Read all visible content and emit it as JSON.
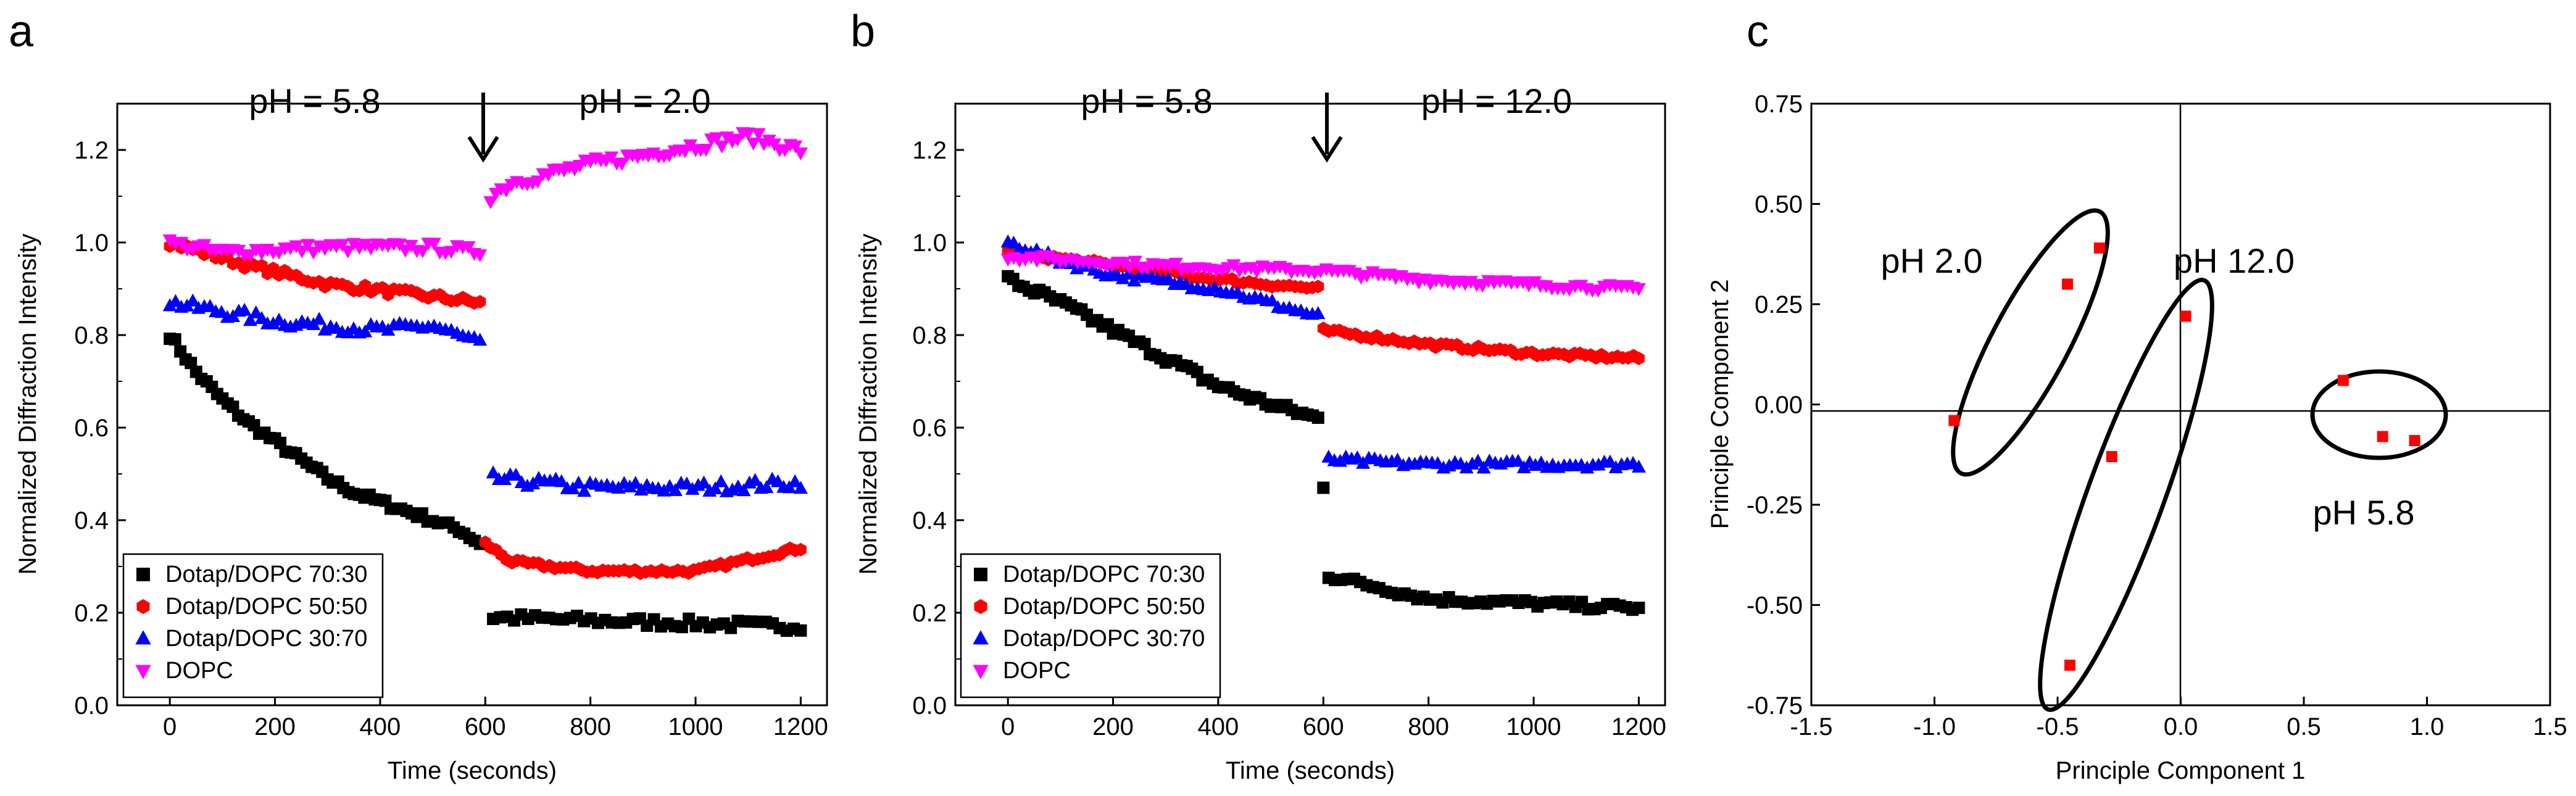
{
  "chart_data": [
    {
      "type": "scatter",
      "panel": "a",
      "title": "",
      "xlabel": "Time (seconds)",
      "ylabel": "Normalized Diffraction Intensity",
      "xlim": [
        -100,
        1250
      ],
      "ylim": [
        0.0,
        1.3
      ],
      "xticks": [
        0,
        200,
        400,
        600,
        800,
        1000,
        1200
      ],
      "yticks": [
        0.0,
        0.2,
        0.4,
        0.6,
        0.8,
        1.0,
        1.2
      ],
      "annotations": [
        {
          "text": "pH = 5.8",
          "x": 270,
          "y": 1.31
        },
        {
          "text": "pH = 2.0",
          "x": 920,
          "y": 1.31
        }
      ],
      "arrow_x": 600,
      "legend_position": "bottom-left",
      "series": [
        {
          "name": "Dotap/DOPC 70:30",
          "marker": "square",
          "color": "#000000",
          "segments": [
            {
              "x0": 0,
              "x1": 590,
              "n": 60,
              "points": [
                [
                  0,
                  0.8
                ],
                [
                  50,
                  0.72
                ],
                [
                  100,
                  0.66
                ],
                [
                  150,
                  0.61
                ],
                [
                  200,
                  0.57
                ],
                [
                  250,
                  0.53
                ],
                [
                  300,
                  0.49
                ],
                [
                  350,
                  0.46
                ],
                [
                  400,
                  0.44
                ],
                [
                  450,
                  0.42
                ],
                [
                  500,
                  0.4
                ],
                [
                  550,
                  0.38
                ],
                [
                  590,
                  0.35
                ]
              ],
              "noise": 0.008
            },
            {
              "x0": 615,
              "x1": 1200,
              "n": 45,
              "points": [
                [
                  615,
                  0.19
                ],
                [
                  900,
                  0.18
                ],
                [
                  1200,
                  0.17
                ]
              ],
              "noise": 0.01
            }
          ]
        },
        {
          "name": "Dotap/DOPC 50:50",
          "marker": "hexagon",
          "color": "#ff0000",
          "segments": [
            {
              "x0": 0,
              "x1": 590,
              "n": 55,
              "points": [
                [
                  0,
                  1.0
                ],
                [
                  150,
                  0.95
                ],
                [
                  300,
                  0.91
                ],
                [
                  450,
                  0.89
                ],
                [
                  590,
                  0.87
                ]
              ],
              "noise": 0.008
            },
            {
              "x0": 600,
              "x1": 1200,
              "n": 60,
              "points": [
                [
                  600,
                  0.35
                ],
                [
                  650,
                  0.31
                ],
                [
                  800,
                  0.29
                ],
                [
                  1000,
                  0.29
                ],
                [
                  1200,
                  0.34
                ]
              ],
              "noise": 0.005
            }
          ]
        },
        {
          "name": "Dotap/DOPC 30:70",
          "marker": "triangle",
          "color": "#0000ff",
          "segments": [
            {
              "x0": 0,
              "x1": 590,
              "n": 55,
              "points": [
                [
                  0,
                  0.87
                ],
                [
                  200,
                  0.83
                ],
                [
                  400,
                  0.81
                ],
                [
                  500,
                  0.82
                ],
                [
                  590,
                  0.78
                ]
              ],
              "noise": 0.012
            },
            {
              "x0": 615,
              "x1": 1200,
              "n": 55,
              "points": [
                [
                  615,
                  0.49
                ],
                [
                  800,
                  0.47
                ],
                [
                  1000,
                  0.47
                ],
                [
                  1200,
                  0.48
                ]
              ],
              "noise": 0.012
            }
          ]
        },
        {
          "name": "DOPC",
          "marker": "triangle-down",
          "color": "#ff00ff",
          "segments": [
            {
              "x0": 0,
              "x1": 590,
              "n": 55,
              "points": [
                [
                  0,
                  1.0
                ],
                [
                  100,
                  0.98
                ],
                [
                  300,
                  0.99
                ],
                [
                  500,
                  0.99
                ],
                [
                  590,
                  0.98
                ]
              ],
              "noise": 0.01
            },
            {
              "x0": 610,
              "x1": 1200,
              "n": 60,
              "points": [
                [
                  610,
                  1.1
                ],
                [
                  650,
                  1.13
                ],
                [
                  800,
                  1.17
                ],
                [
                  1000,
                  1.21
                ],
                [
                  1100,
                  1.23
                ],
                [
                  1200,
                  1.2
                ]
              ],
              "noise": 0.012
            }
          ]
        }
      ]
    },
    {
      "type": "scatter",
      "panel": "b",
      "title": "",
      "xlabel": "Time (seconds)",
      "ylabel": "Normalized Diffraction Intensity",
      "xlim": [
        -100,
        1250
      ],
      "ylim": [
        0.0,
        1.3
      ],
      "xticks": [
        0,
        200,
        400,
        600,
        800,
        1000,
        1200
      ],
      "yticks": [
        0.0,
        0.2,
        0.4,
        0.6,
        0.8,
        1.0,
        1.2
      ],
      "annotations": [
        {
          "text": "pH = 5.8",
          "x": 270,
          "y": 1.31
        },
        {
          "text": "pH = 12.0",
          "x": 940,
          "y": 1.31
        }
      ],
      "arrow_x": 600,
      "legend_position": "bottom-left",
      "series": [
        {
          "name": "Dotap/DOPC 70:30",
          "marker": "square",
          "color": "#000000",
          "segments": [
            {
              "x0": 0,
              "x1": 590,
              "n": 60,
              "points": [
                [
                  0,
                  0.92
                ],
                [
                  100,
                  0.87
                ],
                [
                  200,
                  0.81
                ],
                [
                  300,
                  0.75
                ],
                [
                  400,
                  0.69
                ],
                [
                  500,
                  0.65
                ],
                [
                  590,
                  0.62
                ]
              ],
              "noise": 0.01
            },
            {
              "x0": 600,
              "x1": 600,
              "n": 1,
              "points": [
                [
                  600,
                  0.47
                ]
              ],
              "noise": 0
            },
            {
              "x0": 610,
              "x1": 1200,
              "n": 50,
              "points": [
                [
                  610,
                  0.28
                ],
                [
                  800,
                  0.23
                ],
                [
                  1000,
                  0.22
                ],
                [
                  1200,
                  0.21
                ]
              ],
              "noise": 0.008
            }
          ]
        },
        {
          "name": "Dotap/DOPC 50:50",
          "marker": "hexagon",
          "color": "#ff0000",
          "segments": [
            {
              "x0": 0,
              "x1": 590,
              "n": 55,
              "points": [
                [
                  0,
                  0.98
                ],
                [
                  200,
                  0.95
                ],
                [
                  400,
                  0.92
                ],
                [
                  590,
                  0.9
                ]
              ],
              "noise": 0.006
            },
            {
              "x0": 600,
              "x1": 1200,
              "n": 60,
              "points": [
                [
                  600,
                  0.81
                ],
                [
                  800,
                  0.78
                ],
                [
                  1000,
                  0.76
                ],
                [
                  1200,
                  0.75
                ]
              ],
              "noise": 0.005
            }
          ]
        },
        {
          "name": "Dotap/DOPC 30:70",
          "marker": "triangle",
          "color": "#0000ff",
          "segments": [
            {
              "x0": 0,
              "x1": 590,
              "n": 55,
              "points": [
                [
                  0,
                  1.0
                ],
                [
                  100,
                  0.96
                ],
                [
                  200,
                  0.93
                ],
                [
                  400,
                  0.9
                ],
                [
                  590,
                  0.84
                ]
              ],
              "noise": 0.008
            },
            {
              "x0": 610,
              "x1": 1200,
              "n": 55,
              "points": [
                [
                  610,
                  0.53
                ],
                [
                  800,
                  0.52
                ],
                [
                  1000,
                  0.52
                ],
                [
                  1200,
                  0.52
                ]
              ],
              "noise": 0.008
            }
          ]
        },
        {
          "name": "DOPC",
          "marker": "triangle-down",
          "color": "#ff00ff",
          "segments": [
            {
              "x0": 0,
              "x1": 1200,
              "n": 110,
              "points": [
                [
                  0,
                  0.97
                ],
                [
                  300,
                  0.95
                ],
                [
                  600,
                  0.94
                ],
                [
                  800,
                  0.92
                ],
                [
                  1000,
                  0.91
                ],
                [
                  1200,
                  0.9
                ]
              ],
              "noise": 0.007
            }
          ]
        }
      ]
    },
    {
      "type": "scatter",
      "panel": "c",
      "title": "",
      "xlabel": "Principle Component 1",
      "ylabel": "Principle Component 2",
      "xlim": [
        -1.5,
        1.5
      ],
      "ylim": [
        -0.75,
        0.75
      ],
      "xticks": [
        -1.5,
        -1.0,
        -0.5,
        0.0,
        0.5,
        1.0,
        1.5
      ],
      "yticks": [
        -0.75,
        -0.5,
        -0.25,
        0.0,
        0.25,
        0.5,
        0.75
      ],
      "series": [
        {
          "name": "samples",
          "marker": "square",
          "color": "#ff0000",
          "points": [
            [
              -0.92,
              -0.04
            ],
            [
              -0.46,
              0.3
            ],
            [
              -0.33,
              0.39
            ],
            [
              -0.28,
              -0.13
            ],
            [
              -0.45,
              -0.65
            ],
            [
              0.02,
              0.22
            ],
            [
              0.66,
              0.06
            ],
            [
              0.82,
              -0.08
            ],
            [
              0.95,
              -0.09
            ]
          ]
        }
      ],
      "clusters": [
        {
          "label": "pH 2.0",
          "cx": -0.61,
          "cy": 0.17,
          "label_x": -1.02,
          "label_y": 0.4
        },
        {
          "label": "pH 12.0",
          "cx": -0.22,
          "cy": -0.21,
          "label_x": 0.21,
          "label_y": 0.4
        },
        {
          "label": "pH 5.8",
          "cx": 0.81,
          "cy": -0.01,
          "label_x": 0.76,
          "label_y": -0.26
        }
      ]
    }
  ],
  "labels": {
    "panel_a": "a",
    "panel_b": "b",
    "panel_c": "c",
    "legend_a": [
      "Dotap/DOPC 70:30",
      "Dotap/DOPC 50:50",
      "Dotap/DOPC 30:70",
      "DOPC"
    ],
    "legend_b": [
      "Dotap/DOPC 70:30",
      "Dotap/DOPC 50:50",
      "Dotap/DOPC 30:70",
      "DOPC"
    ],
    "a_ph_left": "pH = 5.8",
    "a_ph_right": "pH = 2.0",
    "b_ph_left": "pH = 5.8",
    "b_ph_right": "pH = 12.0",
    "c_ph_20": "pH 2.0",
    "c_ph_120": "pH 12.0",
    "c_ph_58": "pH 5.8"
  }
}
